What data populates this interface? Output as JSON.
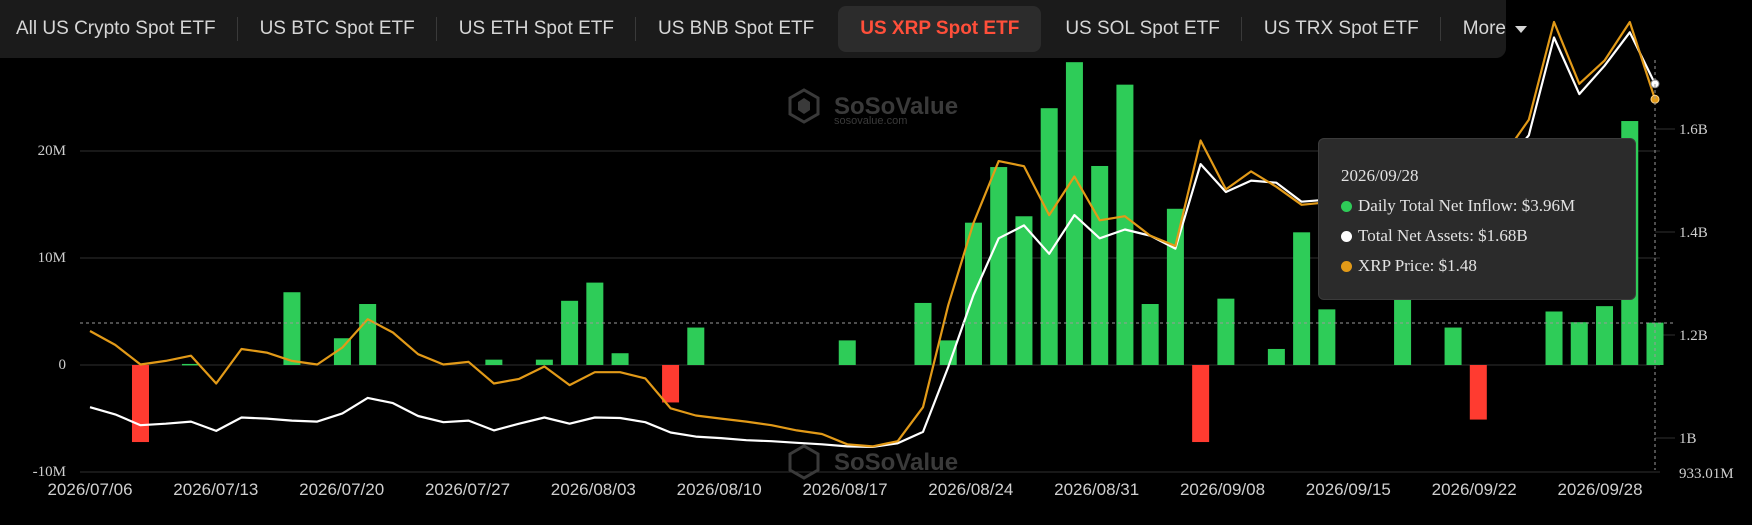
{
  "tabs": [
    {
      "label": "All US Crypto Spot ETF",
      "active": false
    },
    {
      "label": "US BTC Spot ETF",
      "active": false
    },
    {
      "label": "US ETH Spot ETF",
      "active": false
    },
    {
      "label": "US BNB Spot ETF",
      "active": false
    },
    {
      "label": "US XRP Spot ETF",
      "active": true
    },
    {
      "label": "US SOL Spot ETF",
      "active": false
    },
    {
      "label": "US TRX Spot ETF",
      "active": false
    }
  ],
  "more_label": "More",
  "watermark": {
    "brand": "SoSoValue",
    "url": "sosovalue.com"
  },
  "tooltip": {
    "date": "2026/09/28",
    "inflow": "Daily Total Net Inflow: $3.96M",
    "assets": "Total Net Assets: $1.68B",
    "price": "XRP Price: $1.48"
  },
  "chart_data": {
    "type": "bar+line",
    "colors": {
      "positive": "#2ecc58",
      "negative": "#ff3b30",
      "assets_line": "#ffffff",
      "price_line": "#e29a18",
      "active_tab": "#ff4f3a"
    },
    "x_tick_labels": [
      "2026/07/06",
      "2026/07/13",
      "2026/07/20",
      "2026/07/27",
      "2026/08/03",
      "2026/08/10",
      "2026/08/17",
      "2026/08/24",
      "2026/08/31",
      "2026/09/08",
      "2026/09/15",
      "2026/09/22",
      "2026/09/28"
    ],
    "left_axis": {
      "ticks": [
        "20M",
        "10M",
        "0",
        "-10M"
      ],
      "ylim": [
        -10,
        30
      ],
      "unit": "M"
    },
    "right_axis": {
      "ticks": [
        "1.6B",
        "1.4B",
        "1.2B",
        "1B",
        "933.01M"
      ],
      "ylim": [
        0.933,
        1.79
      ],
      "unit": "B"
    },
    "series": [
      {
        "name": "Daily Total Net Inflow",
        "kind": "bar",
        "values": [
          0,
          0,
          -7.2,
          0,
          0.1,
          0,
          0,
          0,
          6.8,
          0,
          2.5,
          5.7,
          0,
          0,
          0,
          0,
          0.5,
          0,
          0.5,
          6.0,
          7.7,
          1.1,
          0,
          -3.5,
          3.5,
          0,
          0,
          0,
          0,
          0,
          2.3,
          0,
          0,
          5.8,
          2.3,
          13.3,
          18.5,
          13.9,
          24.0,
          28.3,
          18.6,
          26.2,
          5.7,
          14.6,
          -7.2,
          6.2,
          0,
          1.5,
          12.4,
          5.2,
          0,
          0,
          7.0,
          0,
          3.5,
          -5.1,
          0,
          0,
          5.0,
          4.0,
          5.5,
          22.8,
          3.96
        ]
      },
      {
        "name": "Total Net Assets",
        "kind": "line",
        "values": [
          1.052,
          1.038,
          1.017,
          1.02,
          1.024,
          1.006,
          1.032,
          1.03,
          1.026,
          1.024,
          1.04,
          1.07,
          1.06,
          1.035,
          1.023,
          1.026,
          1.007,
          1.02,
          1.032,
          1.02,
          1.032,
          1.031,
          1.023,
          1.003,
          0.995,
          0.992,
          0.988,
          0.986,
          0.983,
          0.98,
          0.976,
          0.975,
          0.982,
          1.004,
          1.13,
          1.27,
          1.38,
          1.405,
          1.35,
          1.425,
          1.38,
          1.397,
          1.385,
          1.36,
          1.524,
          1.47,
          1.492,
          1.488,
          1.451,
          1.455,
          1.451,
          1.46,
          1.535,
          1.49,
          1.545,
          1.53,
          1.52,
          1.58,
          1.77,
          1.66,
          1.715,
          1.78,
          1.68
        ]
      },
      {
        "name": "XRP Price",
        "kind": "line",
        "values": [
          1.2,
          1.173,
          1.135,
          1.142,
          1.152,
          1.098,
          1.165,
          1.158,
          1.142,
          1.135,
          1.168,
          1.223,
          1.197,
          1.155,
          1.135,
          1.14,
          1.098,
          1.107,
          1.131,
          1.095,
          1.12,
          1.12,
          1.108,
          1.05,
          1.036,
          1.03,
          1.024,
          1.017,
          1.007,
          1.0,
          0.98,
          0.976,
          0.986,
          1.052,
          1.25,
          1.41,
          1.53,
          1.52,
          1.425,
          1.5,
          1.415,
          1.423,
          1.385,
          1.365,
          1.57,
          1.475,
          1.51,
          1.48,
          1.445,
          1.45,
          1.46,
          1.47,
          1.55,
          1.5,
          1.57,
          1.55,
          1.54,
          1.61,
          1.8,
          1.68,
          1.725,
          1.8,
          1.65
        ]
      }
    ],
    "crosshair_value_right": 1.2,
    "grid": true
  }
}
